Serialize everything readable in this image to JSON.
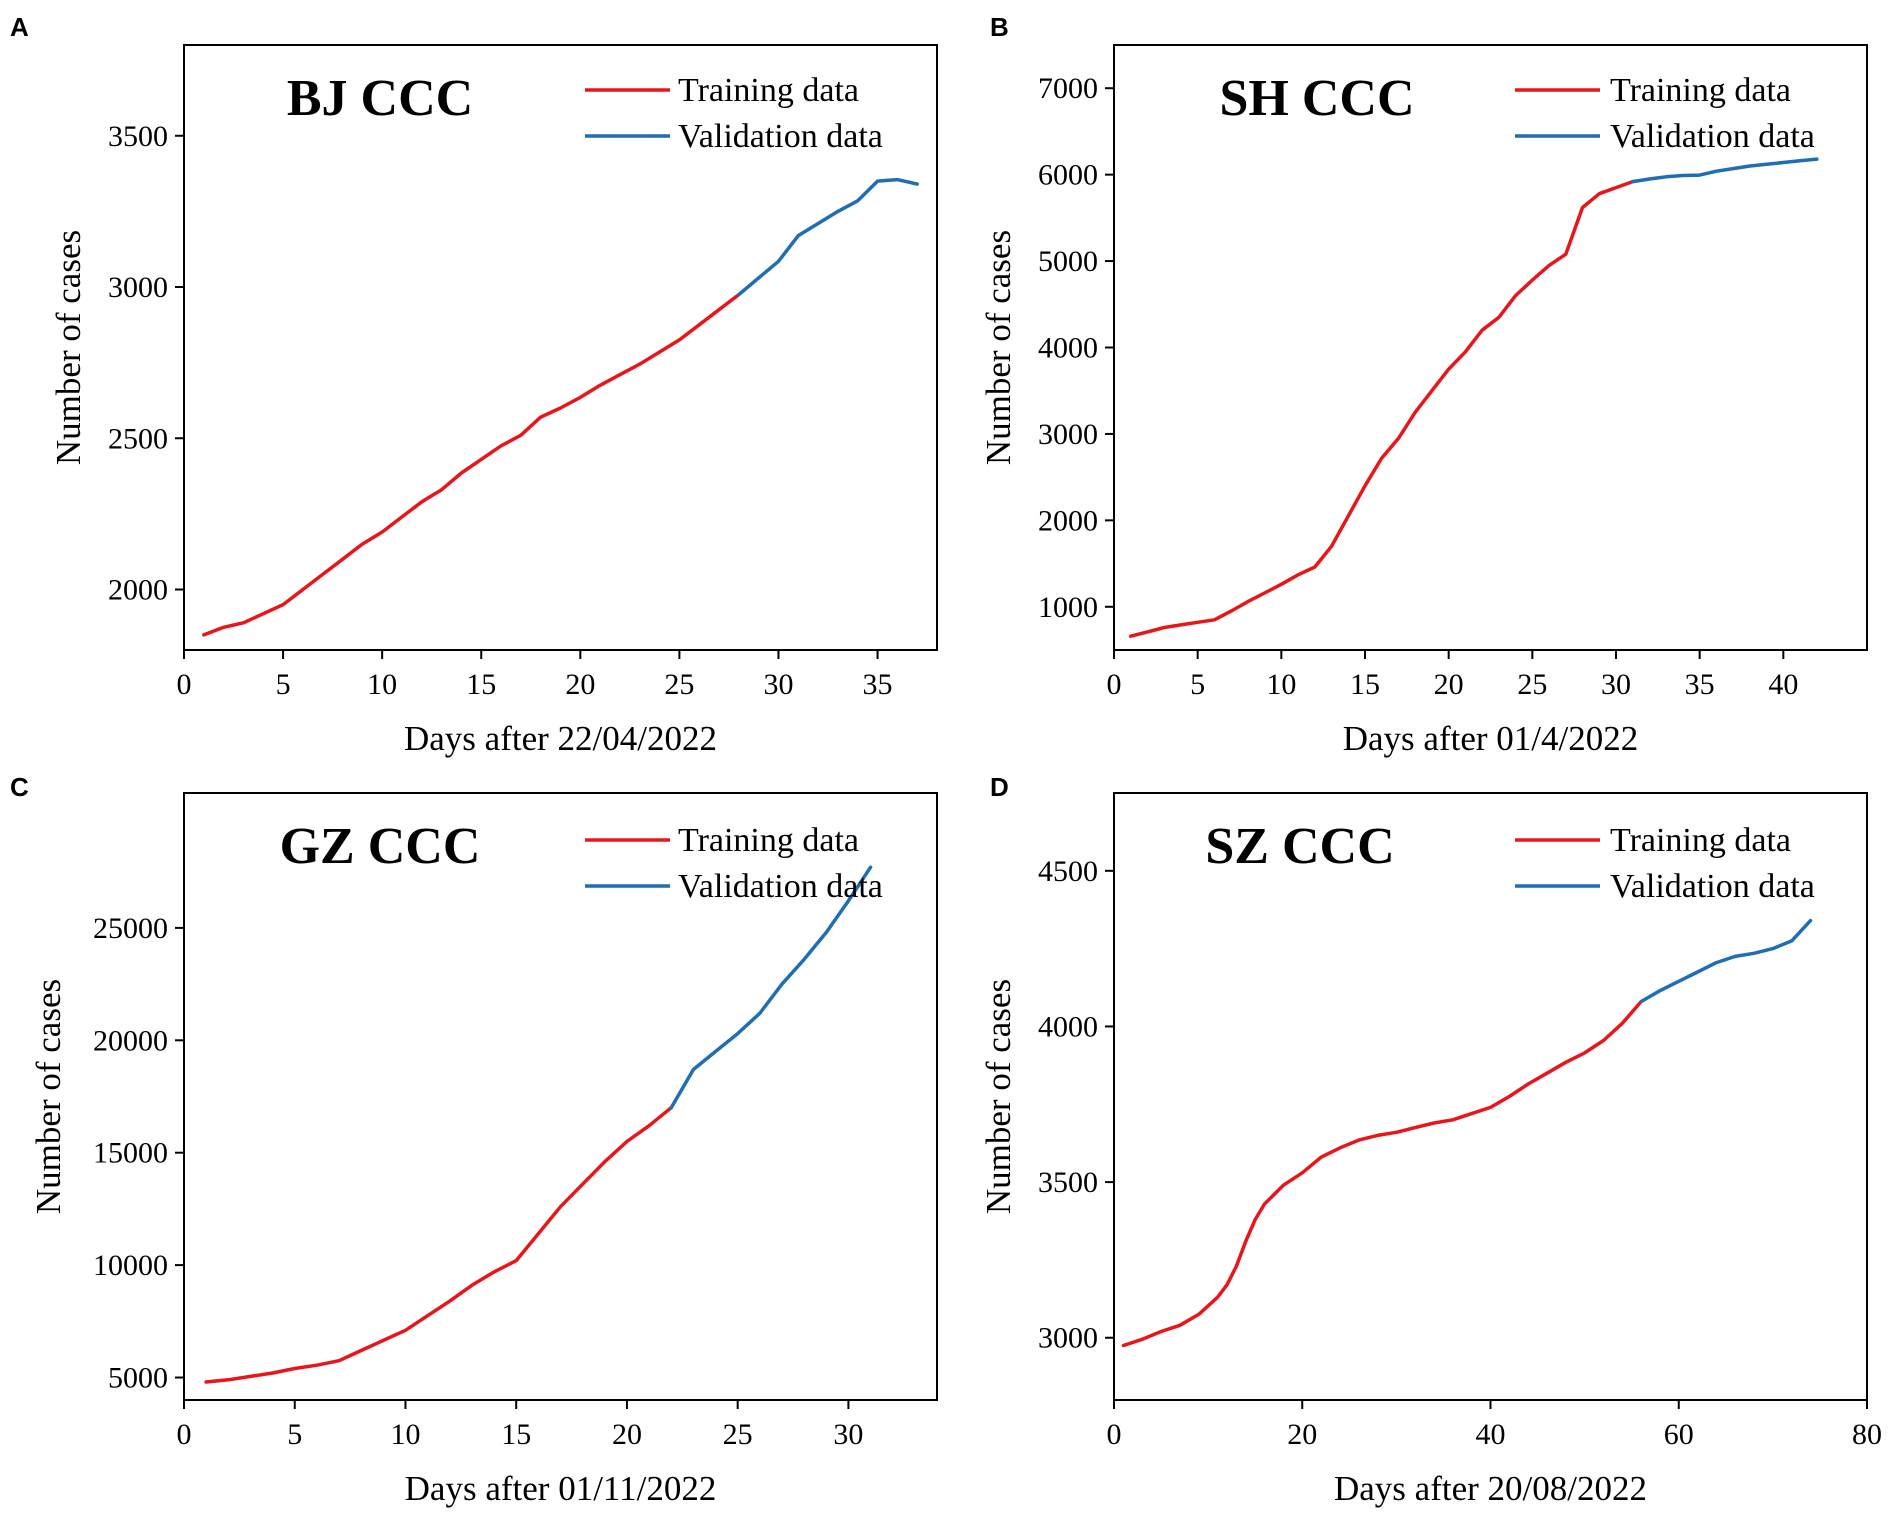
{
  "colors": {
    "training": "#e8161b",
    "validation": "#1f6db4",
    "axis": "#000000",
    "background": "#ffffff"
  },
  "chart_data": [
    {
      "panel": "A",
      "type": "line",
      "title": "BJ CCC",
      "xlabel": "Days after 22/04/2022",
      "ylabel": "Number of cases",
      "xlim": [
        0,
        38
      ],
      "ylim": [
        1800,
        3800
      ],
      "xticks": [
        0,
        5,
        10,
        15,
        20,
        25,
        30,
        35
      ],
      "yticks": [
        2000,
        2500,
        3000,
        3500
      ],
      "grid": false,
      "legend_position": "top-right",
      "series": [
        {
          "name": "Training data",
          "color": "#e8161b",
          "x": [
            1,
            2,
            3,
            4,
            5,
            6,
            7,
            8,
            9,
            10,
            11,
            12,
            13,
            14,
            15,
            16,
            17,
            18,
            19,
            20,
            21,
            22,
            23,
            24,
            25,
            26,
            27,
            28
          ],
          "y": [
            1850,
            1875,
            1890,
            1920,
            1950,
            2000,
            2050,
            2100,
            2150,
            2190,
            2240,
            2290,
            2330,
            2385,
            2430,
            2475,
            2510,
            2570,
            2600,
            2635,
            2675,
            2710,
            2745,
            2785,
            2825,
            2875,
            2925,
            2975
          ]
        },
        {
          "name": "Validation data",
          "color": "#1f6db4",
          "x": [
            28,
            29,
            30,
            31,
            32,
            33,
            34,
            35,
            36,
            37
          ],
          "y": [
            2975,
            3030,
            3085,
            3170,
            3210,
            3250,
            3285,
            3350,
            3355,
            3340
          ]
        }
      ]
    },
    {
      "panel": "B",
      "type": "line",
      "title": "SH CCC",
      "xlabel": "Days after 01/4/2022",
      "ylabel": "Number of cases",
      "xlim": [
        0,
        45
      ],
      "ylim": [
        500,
        7500
      ],
      "xticks": [
        0,
        5,
        10,
        15,
        20,
        25,
        30,
        35,
        40
      ],
      "yticks": [
        1000,
        2000,
        3000,
        4000,
        5000,
        6000,
        7000
      ],
      "grid": false,
      "legend_position": "top-right",
      "series": [
        {
          "name": "Training data",
          "color": "#e8161b",
          "x": [
            1,
            2,
            3,
            4,
            5,
            6,
            7,
            8,
            9,
            10,
            11,
            12,
            13,
            14,
            15,
            16,
            17,
            18,
            19,
            20,
            21,
            22,
            23,
            24,
            25,
            26,
            27,
            28,
            29,
            30,
            31
          ],
          "y": [
            660,
            710,
            760,
            790,
            820,
            850,
            950,
            1060,
            1160,
            1260,
            1370,
            1460,
            1700,
            2050,
            2400,
            2720,
            2950,
            3250,
            3500,
            3750,
            3950,
            4200,
            4350,
            4600,
            4780,
            4950,
            5080,
            5620,
            5780,
            5850,
            5920
          ]
        },
        {
          "name": "Validation data",
          "color": "#1f6db4",
          "x": [
            31,
            32,
            33,
            34,
            35,
            36,
            37,
            38,
            39,
            40,
            41,
            42
          ],
          "y": [
            5920,
            5950,
            5975,
            5990,
            5995,
            6040,
            6070,
            6100,
            6120,
            6140,
            6160,
            6180
          ]
        }
      ]
    },
    {
      "panel": "C",
      "type": "line",
      "title": "GZ CCC",
      "xlabel": "Days after 01/11/2022",
      "ylabel": "Number of cases",
      "xlim": [
        0,
        34
      ],
      "ylim": [
        4000,
        31000
      ],
      "xticks": [
        0,
        5,
        10,
        15,
        20,
        25,
        30
      ],
      "yticks": [
        5000,
        10000,
        15000,
        20000,
        25000
      ],
      "grid": false,
      "legend_position": "top-right",
      "series": [
        {
          "name": "Training data",
          "color": "#e8161b",
          "x": [
            1,
            2,
            3,
            4,
            5,
            6,
            7,
            8,
            9,
            10,
            11,
            12,
            13,
            14,
            15,
            16,
            17,
            18,
            19,
            20,
            21,
            22
          ],
          "y": [
            4800,
            4900,
            5050,
            5200,
            5400,
            5550,
            5750,
            6200,
            6650,
            7100,
            7750,
            8400,
            9100,
            9700,
            10200,
            11400,
            12600,
            13600,
            14600,
            15500,
            16200,
            17000
          ]
        },
        {
          "name": "Validation data",
          "color": "#1f6db4",
          "x": [
            22,
            23,
            24,
            25,
            26,
            27,
            28,
            29,
            30,
            31
          ],
          "y": [
            17000,
            18700,
            19500,
            20300,
            21200,
            22500,
            23600,
            24800,
            26200,
            27700
          ]
        }
      ]
    },
    {
      "panel": "D",
      "type": "line",
      "title": "SZ CCC",
      "xlabel": "Days after 20/08/2022",
      "ylabel": "Number of cases",
      "xlim": [
        0,
        80
      ],
      "ylim": [
        2800,
        4750
      ],
      "xticks": [
        0,
        20,
        40,
        60,
        80
      ],
      "yticks": [
        3000,
        3500,
        4000,
        4500
      ],
      "grid": false,
      "legend_position": "top-right",
      "series": [
        {
          "name": "Training data",
          "color": "#e8161b",
          "x": [
            1,
            3,
            5,
            7,
            9,
            11,
            12,
            13,
            14,
            15,
            16,
            18,
            20,
            22,
            24,
            26,
            28,
            30,
            32,
            34,
            36,
            38,
            40,
            42,
            44,
            46,
            48,
            50,
            52,
            54,
            56
          ],
          "y": [
            2975,
            2995,
            3020,
            3040,
            3075,
            3130,
            3170,
            3230,
            3310,
            3380,
            3430,
            3490,
            3530,
            3580,
            3610,
            3635,
            3650,
            3660,
            3675,
            3690,
            3700,
            3720,
            3740,
            3775,
            3815,
            3850,
            3885,
            3915,
            3955,
            4010,
            4080
          ]
        },
        {
          "name": "Validation data",
          "color": "#1f6db4",
          "x": [
            56,
            58,
            60,
            62,
            64,
            66,
            68,
            70,
            72,
            74
          ],
          "y": [
            4080,
            4115,
            4145,
            4175,
            4205,
            4225,
            4235,
            4250,
            4275,
            4340
          ]
        }
      ]
    }
  ]
}
